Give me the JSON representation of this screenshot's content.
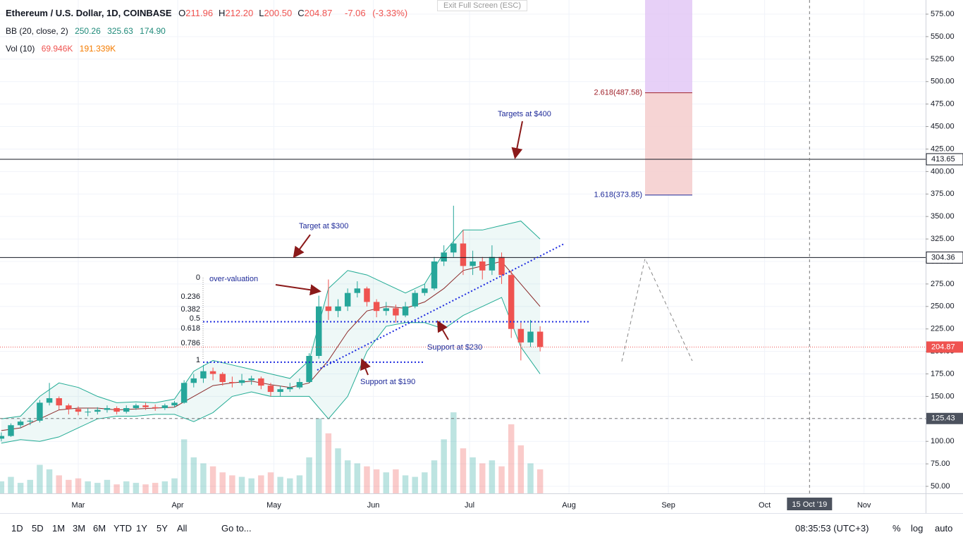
{
  "header": {
    "symbol": "Ethereum / U.S. Dollar, 1D, COINBASE",
    "ohlc": [
      {
        "name": "O",
        "value": 211.96
      },
      {
        "name": "H",
        "value": 212.2,
        "label": "212.20"
      },
      {
        "name": "L",
        "value": 200.5,
        "label": "200.50"
      },
      {
        "name": "C",
        "value": 204.87
      }
    ],
    "change": -7.06,
    "change_pct": {
      "value": -3.33,
      "label": "(-3.33%)"
    },
    "bb": {
      "name": "BB (20, close, 2)",
      "values": [
        250.26,
        325.63,
        {
          "value": 174.9,
          "label": "174.90"
        }
      ]
    },
    "vol": {
      "name": "Vol (10)",
      "values": [
        {
          "value": 69946,
          "label": "69.946K"
        },
        {
          "value": 191339,
          "label": "191.339K"
        }
      ]
    },
    "exit": "Exit Full Screen (ESC)"
  },
  "chart_data": {
    "type": "candlestick",
    "xlim": [
      -24.4,
      264.2
    ],
    "ylim": [
      42.2,
      590.7
    ],
    "yticks": [
      {
        "value": 50,
        "label": "50.00"
      },
      {
        "value": 75,
        "label": "75.00"
      },
      {
        "value": 100,
        "label": "100.00"
      },
      {
        "value": 125,
        "label": "125.00"
      },
      {
        "value": 150,
        "label": "150.00"
      },
      {
        "value": 175,
        "label": "175.00"
      },
      {
        "value": 200,
        "label": "200.00"
      },
      {
        "value": 225,
        "label": "225.00"
      },
      {
        "value": 250,
        "label": "250.00"
      },
      {
        "value": 275,
        "label": "275.00"
      },
      {
        "value": 300,
        "label": "300.00"
      },
      {
        "value": 325,
        "label": "325.00"
      },
      {
        "value": 350,
        "label": "350.00"
      },
      {
        "value": 375,
        "label": "375.00"
      },
      {
        "value": 400,
        "label": "400.00"
      },
      {
        "value": 425,
        "label": "425.00"
      },
      {
        "value": 450,
        "label": "450.00"
      },
      {
        "value": 475,
        "label": "475.00"
      },
      {
        "value": 500,
        "label": "500.00"
      },
      {
        "value": 525,
        "label": "525.00"
      },
      {
        "value": 550,
        "label": "550.00"
      },
      {
        "value": 575,
        "label": "575.00"
      }
    ],
    "xticks": [
      {
        "value": 0,
        "label": "Mar"
      },
      {
        "value": 31,
        "label": "Apr"
      },
      {
        "value": 61,
        "label": "May"
      },
      {
        "value": 92,
        "label": "Jun"
      },
      {
        "value": 122,
        "label": "Jul"
      },
      {
        "value": 153,
        "label": "Aug"
      },
      {
        "value": 184,
        "label": "Sep"
      },
      {
        "value": 214,
        "label": "Oct"
      },
      {
        "value": 245,
        "label": "Nov"
      }
    ],
    "grid": true,
    "up_color": "#26a69a",
    "down_color": "#ef5350",
    "candles": {
      "x": [
        -24,
        -21,
        -18,
        -15,
        -12,
        -9,
        -6,
        -3,
        0,
        3,
        6,
        9,
        12,
        15,
        18,
        21,
        24,
        27,
        30,
        33,
        36,
        39,
        42,
        45,
        48,
        51,
        54,
        57,
        60,
        63,
        66,
        69,
        72,
        75,
        78,
        81,
        84,
        87,
        90,
        93,
        96,
        99,
        102,
        105,
        108,
        111,
        114,
        117,
        120,
        123,
        126,
        129,
        132,
        135,
        138,
        141,
        144
      ],
      "ohlc": [
        [
          103,
          110,
          100,
          106
        ],
        [
          106,
          120,
          105,
          118
        ],
        [
          118,
          124,
          115,
          122
        ],
        [
          122,
          126,
          118,
          123
        ],
        [
          123,
          146,
          121,
          143
        ],
        [
          143,
          165,
          140,
          148
        ],
        [
          148,
          150,
          135,
          140
        ],
        [
          140,
          142,
          130,
          136
        ],
        [
          136,
          139,
          129,
          133
        ],
        [
          133,
          137,
          128,
          133
        ],
        [
          133,
          138,
          130,
          135
        ],
        [
          135,
          140,
          132,
          137
        ],
        [
          137,
          139,
          130,
          133
        ],
        [
          133,
          140,
          131,
          137
        ],
        [
          137,
          142,
          135,
          140
        ],
        [
          140,
          143,
          135,
          138
        ],
        [
          138,
          141,
          134,
          137
        ],
        [
          137,
          142,
          135,
          140
        ],
        [
          140,
          145,
          138,
          143
        ],
        [
          143,
          168,
          142,
          165
        ],
        [
          165,
          175,
          160,
          170
        ],
        [
          170,
          185,
          165,
          178
        ],
        [
          178,
          182,
          168,
          175
        ],
        [
          175,
          177,
          162,
          166
        ],
        [
          166,
          172,
          160,
          165
        ],
        [
          165,
          175,
          162,
          168
        ],
        [
          168,
          173,
          163,
          170
        ],
        [
          170,
          172,
          158,
          162
        ],
        [
          162,
          165,
          150,
          155
        ],
        [
          155,
          162,
          150,
          158
        ],
        [
          158,
          165,
          155,
          160
        ],
        [
          160,
          170,
          158,
          166
        ],
        [
          166,
          198,
          165,
          195
        ],
        [
          195,
          262,
          192,
          250
        ],
        [
          250,
          280,
          235,
          245
        ],
        [
          245,
          258,
          238,
          250
        ],
        [
          250,
          270,
          245,
          265
        ],
        [
          265,
          278,
          260,
          270
        ],
        [
          270,
          272,
          250,
          255
        ],
        [
          255,
          258,
          238,
          245
        ],
        [
          245,
          255,
          240,
          248
        ],
        [
          248,
          252,
          232,
          240
        ],
        [
          240,
          255,
          238,
          250
        ],
        [
          250,
          268,
          248,
          265
        ],
        [
          265,
          275,
          262,
          270
        ],
        [
          270,
          305,
          268,
          300
        ],
        [
          300,
          318,
          295,
          310
        ],
        [
          310,
          362,
          305,
          320
        ],
        [
          320,
          335,
          285,
          295
        ],
        [
          295,
          312,
          285,
          300
        ],
        [
          300,
          305,
          280,
          290
        ],
        [
          290,
          318,
          285,
          305
        ],
        [
          305,
          310,
          275,
          285
        ],
        [
          285,
          290,
          215,
          225
        ],
        [
          225,
          232,
          190,
          210
        ],
        [
          210,
          235,
          205,
          222
        ],
        [
          222,
          228,
          200,
          205
        ]
      ],
      "volume": [
        40,
        55,
        35,
        45,
        95,
        80,
        60,
        45,
        50,
        40,
        35,
        45,
        30,
        40,
        35,
        30,
        35,
        40,
        50,
        180,
        120,
        100,
        90,
        70,
        60,
        55,
        50,
        60,
        70,
        55,
        50,
        60,
        120,
        250,
        200,
        150,
        110,
        100,
        90,
        80,
        70,
        80,
        60,
        55,
        70,
        110,
        180,
        270,
        150,
        120,
        100,
        110,
        90,
        230,
        160,
        100,
        80
      ]
    },
    "bands": {
      "x": [
        -24,
        -18,
        -12,
        -6,
        0,
        6,
        12,
        18,
        24,
        30,
        36,
        42,
        48,
        54,
        60,
        66,
        72,
        78,
        84,
        90,
        96,
        102,
        108,
        114,
        120,
        126,
        132,
        138,
        144
      ],
      "upper": [
        125,
        128,
        150,
        165,
        160,
        150,
        143,
        144,
        143,
        147,
        178,
        190,
        185,
        180,
        175,
        170,
        190,
        270,
        290,
        285,
        275,
        265,
        275,
        310,
        335,
        335,
        340,
        345,
        325
      ],
      "middle": [
        112,
        115,
        125,
        135,
        137,
        137,
        135,
        136,
        137,
        138,
        150,
        162,
        165,
        167,
        163,
        160,
        165,
        190,
        222,
        245,
        250,
        248,
        255,
        270,
        290,
        295,
        300,
        275,
        250
      ],
      "lower": [
        98,
        102,
        100,
        105,
        115,
        125,
        128,
        128,
        130,
        130,
        122,
        132,
        150,
        155,
        150,
        150,
        150,
        125,
        150,
        200,
        228,
        232,
        232,
        225,
        240,
        250,
        260,
        205,
        175
      ],
      "color": "#22ab94"
    },
    "levels": [
      413.65,
      304.36
    ],
    "last_price": 204.87,
    "crosshair": {
      "x": {
        "value": 228,
        "label": "15 Oct '19"
      },
      "y": 125.43
    },
    "fib_ext": [
      {
        "value": 487.58,
        "label": "2.618(487.58)"
      },
      {
        "value": 373.85,
        "label": "1.618(373.85)"
      }
    ],
    "fib_retr": [
      0,
      0.236,
      0.382,
      0.5,
      0.618,
      0.786,
      1
    ],
    "annotations": [
      "Targets at $400",
      "Target at $300",
      "over-valuation",
      "Support at $230",
      "Support at $190"
    ]
  },
  "toolbar": {
    "ranges": [
      "1D",
      "5D",
      "1M",
      "3M",
      "6M",
      "YTD",
      "1Y",
      "5Y",
      "All"
    ],
    "goto": "Go to...",
    "clock": "08:35:53 (UTC+3)",
    "options": [
      "%",
      "log",
      "auto"
    ]
  }
}
